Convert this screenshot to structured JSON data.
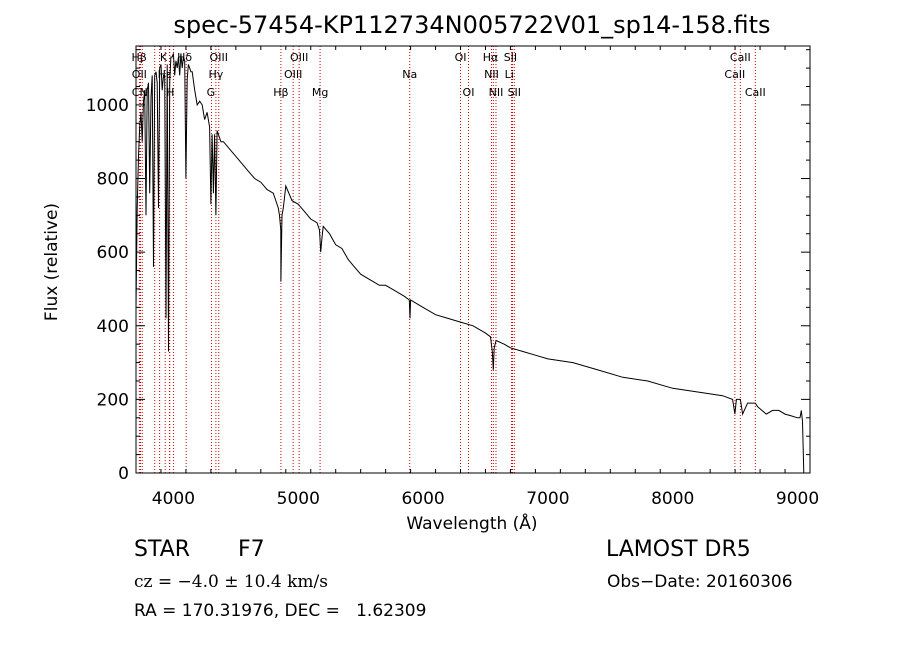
{
  "chart_data": {
    "type": "line",
    "title": "spec-57454-KP112734N005722V01_sp14-158.fits",
    "xlabel": "Wavelength (Å)",
    "ylabel": "Flux (relative)",
    "xlim": [
      3700,
      9100
    ],
    "ylim": [
      0,
      1160
    ],
    "xticks": [
      4000,
      5000,
      6000,
      7000,
      8000,
      9000
    ],
    "yticks": [
      0,
      200,
      400,
      600,
      800,
      1000
    ],
    "grid": false,
    "line_color": "#000000",
    "marker_color": "#cc0000",
    "series": [
      {
        "x": [
          3700,
          3710,
          3720,
          3730,
          3740,
          3750,
          3760,
          3770,
          3780,
          3790,
          3800,
          3810,
          3820,
          3830,
          3840,
          3850,
          3860,
          3870,
          3880,
          3890,
          3900,
          3910,
          3920,
          3930,
          3940,
          3950,
          3960,
          3970,
          3980,
          3990,
          4000,
          4010,
          4020,
          4030,
          4040,
          4050,
          4060,
          4070,
          4080,
          4090,
          4100,
          4110,
          4120,
          4130,
          4140,
          4150,
          4170,
          4190,
          4210,
          4230,
          4250,
          4270,
          4290,
          4300,
          4310,
          4320,
          4330,
          4340,
          4350,
          4360,
          4380,
          4400,
          4450,
          4500,
          4550,
          4600,
          4650,
          4700,
          4750,
          4800,
          4820,
          4840,
          4850,
          4860,
          4861,
          4870,
          4880,
          4900,
          4950,
          5000,
          5050,
          5100,
          5150,
          5170,
          5180,
          5190,
          5200,
          5250,
          5300,
          5350,
          5400,
          5450,
          5500,
          5550,
          5600,
          5650,
          5700,
          5750,
          5800,
          5850,
          5890,
          5895,
          5900,
          5950,
          6000,
          6100,
          6200,
          6300,
          6400,
          6500,
          6540,
          6555,
          6563,
          6570,
          6585,
          6650,
          6700,
          6800,
          6900,
          7000,
          7200,
          7400,
          7600,
          7800,
          8000,
          8200,
          8400,
          8480,
          8498,
          8510,
          8542,
          8560,
          8600,
          8662,
          8680,
          8750,
          8800,
          8850,
          8900,
          8950,
          9000,
          9020,
          9030,
          9040,
          9050
        ],
        "y": [
          450,
          720,
          860,
          940,
          980,
          900,
          1010,
          1040,
          700,
          1040,
          1060,
          760,
          1020,
          1080,
          560,
          1080,
          1090,
          1060,
          720,
          1100,
          1110,
          1040,
          1080,
          1080,
          420,
          1110,
          330,
          1060,
          1130,
          1130,
          1140,
          1080,
          1120,
          1100,
          1130,
          1080,
          1140,
          1100,
          1130,
          1120,
          800,
          1070,
          1110,
          1100,
          1090,
          1090,
          1040,
          1000,
          1010,
          1000,
          960,
          980,
          940,
          730,
          920,
          760,
          920,
          700,
          930,
          920,
          900,
          900,
          880,
          860,
          840,
          820,
          800,
          790,
          770,
          760,
          740,
          720,
          700,
          660,
          520,
          700,
          720,
          780,
          740,
          730,
          710,
          690,
          680,
          660,
          600,
          640,
          670,
          650,
          620,
          610,
          580,
          560,
          540,
          530,
          520,
          510,
          510,
          500,
          490,
          480,
          470,
          420,
          470,
          460,
          450,
          430,
          420,
          410,
          400,
          380,
          370,
          330,
          280,
          340,
          360,
          350,
          340,
          330,
          320,
          310,
          300,
          280,
          260,
          250,
          230,
          220,
          210,
          200,
          160,
          200,
          200,
          160,
          190,
          190,
          180,
          160,
          170,
          170,
          160,
          155,
          150,
          150,
          170,
          140,
          0
        ]
      }
    ],
    "line_markers": [
      {
        "label": "Hβ",
        "x": 3750,
        "row": 0,
        "label_x": 3725
      },
      {
        "label": "K",
        "x": 3934,
        "row": 0,
        "label_x": 3920
      },
      {
        "label": "Hδ",
        "x": 4102,
        "row": 0,
        "label_x": 4090
      },
      {
        "label": "OII",
        "x": 3727,
        "row": 1,
        "label_x": 3727
      },
      {
        "label": "Hε",
        "x": 3970,
        "row": 1,
        "label_x": 3930
      },
      {
        "label": "CN",
        "x": 3850,
        "row": 2,
        "label_x": 3730
      },
      {
        "label": "H",
        "x": 3968,
        "row": 2,
        "label_x": 3975
      },
      {
        "label": "OIII",
        "x": 4363,
        "row": 0,
        "label_x": 4363
      },
      {
        "label": "Hγ",
        "x": 4340,
        "row": 1,
        "label_x": 4340
      },
      {
        "label": "G",
        "x": 4305,
        "row": 2,
        "label_x": 4300
      },
      {
        "label": "OIII",
        "x": 5007,
        "row": 0,
        "label_x": 5007
      },
      {
        "label": "OIII",
        "x": 4959,
        "row": 1,
        "label_x": 4959
      },
      {
        "label": "Hβ",
        "x": 4861,
        "row": 3,
        "label_x": 4861
      },
      {
        "label": "Mg",
        "x": 5175,
        "row": 3,
        "label_x": 5175
      },
      {
        "label": "Na",
        "x": 5893,
        "row": 1,
        "label_x": 5893
      },
      {
        "label": "OI",
        "x": 6300,
        "row": 0,
        "label_x": 6300
      },
      {
        "label": "OI",
        "x": 6364,
        "row": 3,
        "label_x": 6364
      },
      {
        "label": "Hα",
        "x": 6563,
        "row": 0,
        "label_x": 6540
      },
      {
        "label": "SII",
        "x": 6717,
        "row": 0,
        "label_x": 6700
      },
      {
        "label": "NII",
        "x": 6548,
        "row": 1,
        "label_x": 6548
      },
      {
        "label": "Li",
        "x": 6708,
        "row": 1,
        "label_x": 6690
      },
      {
        "label": "NII",
        "x": 6584,
        "row": 3,
        "label_x": 6584
      },
      {
        "label": "SII",
        "x": 6731,
        "row": 3,
        "label_x": 6731
      },
      {
        "label": "CaII",
        "x": 8542,
        "row": 0,
        "label_x": 8542
      },
      {
        "label": "CaII",
        "x": 8498,
        "row": 1,
        "label_x": 8498
      },
      {
        "label": "CaII",
        "x": 8662,
        "row": 3,
        "label_x": 8662
      }
    ],
    "extra_marker_lines": [
      3700,
      3736,
      3889,
      4000
    ]
  },
  "info": {
    "object_class": "STAR",
    "subclass": "F7",
    "survey": "LAMOST DR5",
    "redshift": "cz = −4.0 ± 10.4 km/s",
    "obs_date": "Obs−Date: 20160306",
    "coords": "RA = 170.31976, DEC =   1.62309"
  }
}
